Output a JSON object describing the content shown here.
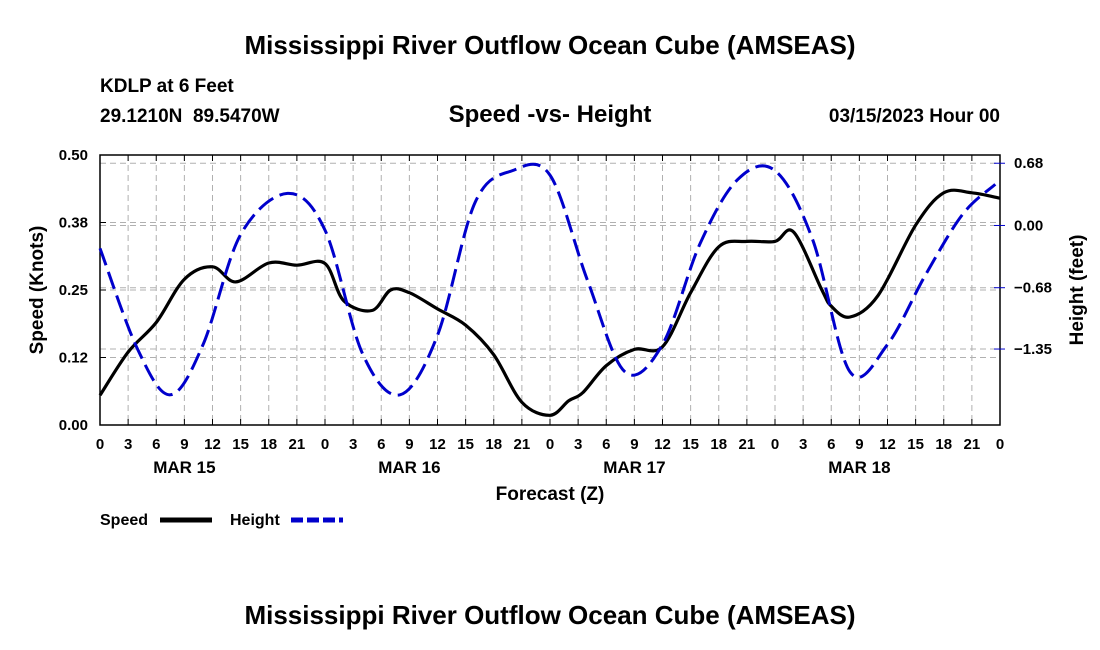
{
  "page": {
    "title": "Mississippi River Outflow Ocean Cube (AMSEAS)",
    "footer_title": "Mississippi River Outflow Ocean Cube (AMSEAS)",
    "station": "KDLP at 6 Feet",
    "coords": "29.1210N  89.5470W",
    "subtitle": "Speed -vs- Height",
    "datetime": "03/15/2023 Hour 00"
  },
  "chart_data": {
    "type": "line",
    "title": "Speed -vs- Height",
    "xlabel": "Forecast (Z)",
    "ylabel": "Speed (Knots)",
    "y2label": "Height (feet)",
    "ylim": [
      0,
      0.5
    ],
    "y2lim": [
      -2.18,
      0.77
    ],
    "x_range_hours": [
      0,
      96
    ],
    "yticks": [
      "0.00",
      "0.12",
      "0.25",
      "0.38",
      "0.50"
    ],
    "yticks_values": [
      0,
      0.125,
      0.25,
      0.375,
      0.5
    ],
    "y2ticks": [
      "0.68",
      "0.00",
      "−0.68",
      "−1.35"
    ],
    "y2ticks_values": [
      0.68,
      0.0,
      -0.68,
      -1.35
    ],
    "xtick_labels": [
      "0",
      "3",
      "6",
      "9",
      "12",
      "15",
      "18",
      "21",
      "0",
      "3",
      "6",
      "9",
      "12",
      "15",
      "18",
      "21",
      "0",
      "3",
      "6",
      "9",
      "12",
      "15",
      "18",
      "21",
      "0",
      "3",
      "6",
      "9",
      "12",
      "15",
      "18",
      "21",
      "0"
    ],
    "date_labels": [
      {
        "label": "MAR 15",
        "hour": 9
      },
      {
        "label": "MAR 16",
        "hour": 33
      },
      {
        "label": "MAR 17",
        "hour": 57
      },
      {
        "label": "MAR 18",
        "hour": 81
      }
    ],
    "grid": true,
    "legend_location": "bottom-left",
    "series": [
      {
        "name": "Speed",
        "axis": "left",
        "color": "#000000",
        "style": "solid",
        "x": [
          0,
          3,
          6,
          9,
          12,
          14.5,
          18,
          21,
          24,
          26,
          29,
          31,
          33,
          36,
          39,
          42,
          45,
          48,
          50,
          51.5,
          54,
          57,
          60,
          63,
          66,
          69,
          72,
          74,
          77,
          78,
          80,
          83,
          87,
          90,
          93,
          96
        ],
        "values": [
          0.055,
          0.135,
          0.19,
          0.27,
          0.293,
          0.265,
          0.3,
          0.296,
          0.299,
          0.23,
          0.212,
          0.25,
          0.245,
          0.215,
          0.185,
          0.13,
          0.042,
          0.018,
          0.045,
          0.06,
          0.11,
          0.14,
          0.145,
          0.245,
          0.33,
          0.34,
          0.34,
          0.357,
          0.25,
          0.22,
          0.2,
          0.24,
          0.37,
          0.43,
          0.43,
          0.42
        ]
      },
      {
        "name": "Height",
        "axis": "right",
        "color": "#0000cc",
        "style": "dashed",
        "x": [
          0,
          4,
          7.5,
          11,
          15,
          20,
          24,
          28,
          32,
          36,
          40,
          44,
          48,
          52,
          56,
          60,
          64,
          68,
          72,
          76,
          80,
          84,
          88,
          92,
          95.5
        ],
        "values": [
          -0.25,
          -1.35,
          -1.85,
          -1.3,
          -0.1,
          0.35,
          -0.05,
          -1.4,
          -1.85,
          -1.2,
          0.25,
          0.6,
          0.55,
          -0.6,
          -1.6,
          -1.3,
          -0.2,
          0.5,
          0.6,
          -0.15,
          -1.6,
          -1.3,
          -0.55,
          0.12,
          0.45
        ]
      }
    ]
  }
}
